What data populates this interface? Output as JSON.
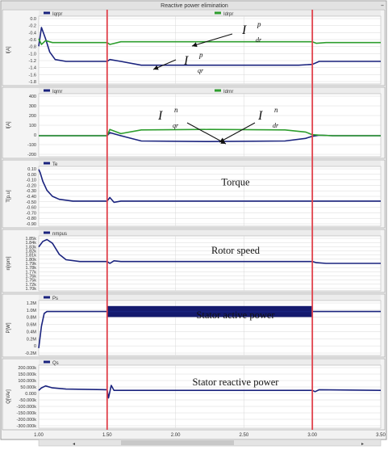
{
  "window_title": "Reactive power elimination",
  "colors": {
    "navy": "#1a237e",
    "green": "#2e9e2e",
    "red_marker": "#e0404a",
    "grid": "#d8d8d8",
    "plot_bg": "#ffffff",
    "header_bg": "#ececec",
    "frame": "#9a9a9a"
  },
  "markers": [
    1.5,
    3.0
  ],
  "x_axis": {
    "ticks": [
      "1.00",
      "1.50",
      "2.00",
      "2.50",
      "3.00",
      "3.50"
    ],
    "range": [
      1.0,
      3.5
    ]
  },
  "chart_data": [
    {
      "type": "line",
      "ylabel": "I[A]",
      "ylim": [
        -1.8,
        0.0
      ],
      "yticks": [
        "0.0",
        "-0.2",
        "-0.4",
        "-0.6",
        "-0.8",
        "-1.0",
        "-1.2",
        "-1.4",
        "-1.6",
        "-1.8"
      ],
      "legend": [
        "Iqrpr",
        "Idrpr"
      ],
      "annotations": [
        {
          "main": "I",
          "sup": "p",
          "sub": "dr"
        },
        {
          "main": "I",
          "sup": "p",
          "sub": "qr"
        }
      ],
      "series": [
        {
          "name": "Iqrpr",
          "color": "navy",
          "x": [
            1.0,
            1.02,
            1.05,
            1.08,
            1.12,
            1.2,
            1.5,
            1.52,
            1.6,
            1.75,
            2.0,
            2.5,
            2.9,
            3.0,
            3.05,
            3.1,
            3.5
          ],
          "y": [
            -0.8,
            -0.3,
            -0.6,
            -0.95,
            -1.15,
            -1.2,
            -1.2,
            -1.15,
            -1.2,
            -1.3,
            -1.3,
            -1.3,
            -1.3,
            -1.28,
            -1.2,
            -1.2,
            -1.2
          ]
        },
        {
          "name": "Idrpr",
          "color": "green",
          "x": [
            1.0,
            1.02,
            1.05,
            1.1,
            1.5,
            1.52,
            1.6,
            3.0,
            3.03,
            3.1,
            3.5
          ],
          "y": [
            -0.6,
            -0.75,
            -0.65,
            -0.7,
            -0.7,
            -0.75,
            -0.68,
            -0.68,
            -0.72,
            -0.7,
            -0.7
          ]
        }
      ]
    },
    {
      "type": "line",
      "ylabel": "I[A]",
      "ylim": [
        -200,
        400
      ],
      "yticks": [
        "400",
        "300",
        "200",
        "100",
        "0",
        "-100",
        "-200"
      ],
      "legend": [
        "Iqrnr",
        "Idrnr"
      ],
      "annotations": [
        {
          "main": "I",
          "sup": "n",
          "sub": "qr"
        },
        {
          "main": "I",
          "sup": "n",
          "sub": "dr"
        }
      ],
      "series": [
        {
          "name": "Iqrnr",
          "color": "navy",
          "x": [
            1.0,
            1.5,
            1.52,
            1.6,
            1.75,
            2.25,
            2.8,
            2.95,
            3.0,
            3.05,
            3.15,
            3.5
          ],
          "y": [
            0,
            0,
            30,
            0,
            -50,
            -55,
            -50,
            -25,
            -5,
            5,
            0,
            0
          ]
        },
        {
          "name": "Idrnr",
          "color": "green",
          "x": [
            1.0,
            1.5,
            1.52,
            1.6,
            1.75,
            2.25,
            2.8,
            2.95,
            3.0,
            3.05,
            3.15,
            3.5
          ],
          "y": [
            0,
            0,
            60,
            20,
            55,
            60,
            55,
            35,
            10,
            5,
            0,
            0
          ]
        }
      ]
    },
    {
      "type": "line",
      "ylabel": "T[p.u]",
      "ylim": [
        -0.9,
        0.1
      ],
      "title": "Torque",
      "yticks": [
        "0.10",
        "0.00",
        "-0.10",
        "-0.20",
        "-0.30",
        "-0.40",
        "-0.50",
        "-0.60",
        "-0.70",
        "-0.80",
        "-0.90"
      ],
      "legend": [
        "Te"
      ],
      "series": [
        {
          "name": "Te",
          "color": "navy",
          "x": [
            1.0,
            1.01,
            1.03,
            1.06,
            1.1,
            1.15,
            1.25,
            1.5,
            1.52,
            1.55,
            1.6,
            3.5
          ],
          "y": [
            0.05,
            0.0,
            -0.15,
            -0.3,
            -0.4,
            -0.45,
            -0.48,
            -0.48,
            -0.42,
            -0.5,
            -0.48,
            -0.48
          ]
        }
      ]
    },
    {
      "type": "line",
      "ylabel": "n[rpm]",
      "ylim": [
        1.7,
        1.85
      ],
      "title": "Rotor speed",
      "yticks": [
        "1.85k",
        "1.84k",
        "1.83k",
        "1.82k",
        "1.81k",
        "1.80k",
        "1.79k",
        "1.78k",
        "1.77k",
        "1.76k",
        "1.75k",
        "1.72k",
        "1.70k"
      ],
      "legend": [
        "nmpus"
      ],
      "series": [
        {
          "name": "nmpus",
          "color": "navy",
          "x": [
            1.0,
            1.03,
            1.06,
            1.1,
            1.15,
            1.2,
            1.3,
            1.5,
            1.52,
            1.55,
            1.6,
            3.0,
            3.03,
            3.1,
            3.5
          ],
          "y": [
            1.82,
            1.835,
            1.84,
            1.83,
            1.8,
            1.785,
            1.78,
            1.78,
            1.775,
            1.782,
            1.78,
            1.78,
            1.777,
            1.775,
            1.775
          ]
        }
      ]
    },
    {
      "type": "line",
      "ylabel": "P[W]",
      "ylim": [
        -0.2,
        1.3
      ],
      "title": "Stator active power",
      "yticks": [
        "1.2M",
        "1.0M",
        "0.8M",
        "0.6M",
        "0.4M",
        "0.2M",
        "0",
        "-0.2M"
      ],
      "legend": [
        "Ps"
      ],
      "series": [
        {
          "name": "Ps",
          "color": "navy",
          "x": [
            1.0,
            1.02,
            1.04,
            1.06,
            1.1,
            1.5,
            1.5,
            3.0,
            3.0,
            3.5
          ],
          "y": [
            0.0,
            0.6,
            0.95,
            1.0,
            1.0,
            1.0,
            1.0,
            1.0,
            1.0,
            1.0
          ]
        }
      ],
      "oscillation_band": {
        "x": [
          1.5,
          3.0
        ],
        "y": [
          0.85,
          1.15
        ]
      }
    },
    {
      "type": "line",
      "ylabel": "Q[VAr]",
      "ylim": [
        -300000,
        200000
      ],
      "title": "Stator reactive power",
      "yticks": [
        "200.000k",
        "150.000k",
        "100.000k",
        "50.000k",
        "0.000",
        "-50.000k",
        "-100.000k",
        "-150.000k",
        "-200.000k",
        "-300.000k"
      ],
      "legend": [
        "Qs"
      ],
      "series": [
        {
          "name": "Qs",
          "color": "navy",
          "x": [
            1.0,
            1.02,
            1.05,
            1.1,
            1.2,
            1.5,
            1.51,
            1.53,
            1.55,
            1.6,
            3.0,
            3.02,
            3.05,
            3.5
          ],
          "y": [
            0,
            20000,
            35000,
            20000,
            10000,
            5000,
            -60000,
            40000,
            0,
            0,
            0,
            -10000,
            5000,
            0
          ]
        }
      ]
    }
  ]
}
